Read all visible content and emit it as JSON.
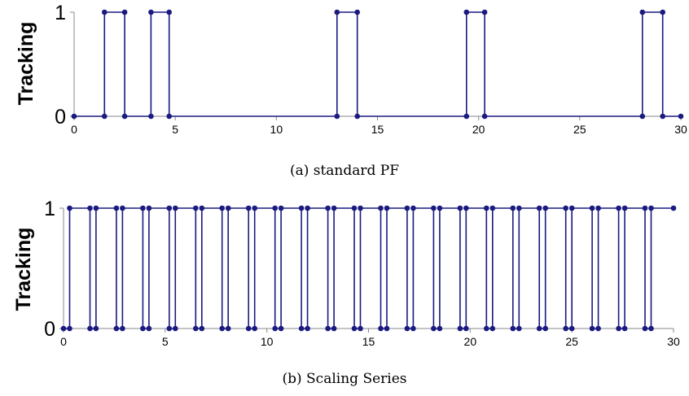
{
  "chart_data": [
    {
      "type": "line",
      "step": true,
      "ylabel": "Tracking",
      "caption": "(a) standard PF",
      "xlim": [
        0,
        30
      ],
      "ylim": [
        0,
        1
      ],
      "xticks": [
        0,
        5,
        10,
        15,
        20,
        25,
        30
      ],
      "yticks": [
        0,
        1
      ],
      "color": "#1a1a80",
      "series": [
        {
          "points": [
            [
              0,
              0
            ],
            [
              1.5,
              0
            ],
            [
              1.5,
              1
            ],
            [
              2.5,
              1
            ],
            [
              2.5,
              0
            ],
            [
              3.8,
              0
            ],
            [
              3.8,
              1
            ],
            [
              4.7,
              1
            ],
            [
              4.7,
              0
            ],
            [
              13,
              0
            ],
            [
              13,
              1
            ],
            [
              14,
              1
            ],
            [
              14,
              0
            ],
            [
              19.4,
              0
            ],
            [
              19.4,
              1
            ],
            [
              20.3,
              1
            ],
            [
              20.3,
              0
            ],
            [
              28.1,
              0
            ],
            [
              28.1,
              1
            ],
            [
              29.1,
              1
            ],
            [
              29.1,
              0
            ],
            [
              30,
              0
            ]
          ]
        }
      ]
    },
    {
      "type": "line",
      "step": true,
      "ylabel": "Tracking",
      "caption": "(b) Scaling Series",
      "xlim": [
        0,
        30
      ],
      "ylim": [
        0,
        1
      ],
      "xticks": [
        0,
        5,
        10,
        15,
        20,
        25,
        30
      ],
      "yticks": [
        0,
        1
      ],
      "color": "#1a1a80",
      "series": [
        {
          "points": [
            [
              0,
              0
            ],
            [
              0.3,
              0
            ],
            [
              0.3,
              1
            ],
            [
              1.3,
              1
            ],
            [
              1.3,
              0
            ],
            [
              1.6,
              0
            ],
            [
              1.6,
              1
            ],
            [
              2.6,
              1
            ],
            [
              2.6,
              0
            ],
            [
              2.9,
              0
            ],
            [
              2.9,
              1
            ],
            [
              3.9,
              1
            ],
            [
              3.9,
              0
            ],
            [
              4.2,
              0
            ],
            [
              4.2,
              1
            ],
            [
              5.2,
              1
            ],
            [
              5.2,
              0
            ],
            [
              5.5,
              0
            ],
            [
              5.5,
              1
            ],
            [
              6.5,
              1
            ],
            [
              6.5,
              0
            ],
            [
              6.8,
              0
            ],
            [
              6.8,
              1
            ],
            [
              7.8,
              1
            ],
            [
              7.8,
              0
            ],
            [
              8.1,
              0
            ],
            [
              8.1,
              1
            ],
            [
              9.1,
              1
            ],
            [
              9.1,
              0
            ],
            [
              9.4,
              0
            ],
            [
              9.4,
              1
            ],
            [
              10.4,
              1
            ],
            [
              10.4,
              0
            ],
            [
              10.7,
              0
            ],
            [
              10.7,
              1
            ],
            [
              11.7,
              1
            ],
            [
              11.7,
              0
            ],
            [
              12.0,
              0
            ],
            [
              12.0,
              1
            ],
            [
              13.0,
              1
            ],
            [
              13.0,
              0
            ],
            [
              13.3,
              0
            ],
            [
              13.3,
              1
            ],
            [
              14.3,
              1
            ],
            [
              14.3,
              0
            ],
            [
              14.6,
              0
            ],
            [
              14.6,
              1
            ],
            [
              15.6,
              1
            ],
            [
              15.6,
              0
            ],
            [
              15.9,
              0
            ],
            [
              15.9,
              1
            ],
            [
              16.9,
              1
            ],
            [
              16.9,
              0
            ],
            [
              17.2,
              0
            ],
            [
              17.2,
              1
            ],
            [
              18.2,
              1
            ],
            [
              18.2,
              0
            ],
            [
              18.5,
              0
            ],
            [
              18.5,
              1
            ],
            [
              19.5,
              1
            ],
            [
              19.5,
              0
            ],
            [
              19.8,
              0
            ],
            [
              19.8,
              1
            ],
            [
              20.8,
              1
            ],
            [
              20.8,
              0
            ],
            [
              21.1,
              0
            ],
            [
              21.1,
              1
            ],
            [
              22.1,
              1
            ],
            [
              22.1,
              0
            ],
            [
              22.4,
              0
            ],
            [
              22.4,
              1
            ],
            [
              23.4,
              1
            ],
            [
              23.4,
              0
            ],
            [
              23.7,
              0
            ],
            [
              23.7,
              1
            ],
            [
              24.7,
              1
            ],
            [
              24.7,
              0
            ],
            [
              25.0,
              0
            ],
            [
              25.0,
              1
            ],
            [
              26.0,
              1
            ],
            [
              26.0,
              0
            ],
            [
              26.3,
              0
            ],
            [
              26.3,
              1
            ],
            [
              27.3,
              1
            ],
            [
              27.3,
              0
            ],
            [
              27.6,
              0
            ],
            [
              27.6,
              1
            ],
            [
              28.6,
              1
            ],
            [
              28.6,
              0
            ],
            [
              28.9,
              0
            ],
            [
              28.9,
              1
            ],
            [
              30,
              1
            ]
          ]
        }
      ]
    }
  ]
}
